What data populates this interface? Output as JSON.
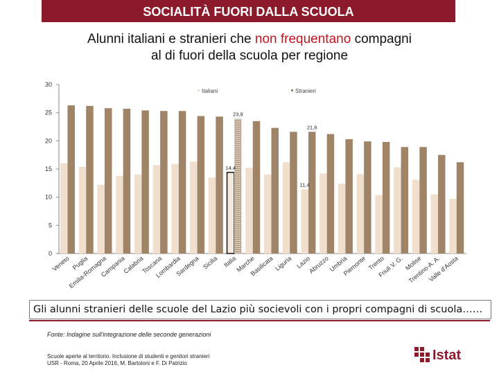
{
  "header": {
    "banner": "SOCIALITÀ FUORI DALLA SCUOLA"
  },
  "title": {
    "part1": "Alunni italiani e stranieri che ",
    "highlight": "non frequentano",
    "part2": " compagni",
    "line2": "al di fuori della scuola per regione"
  },
  "chart_data": {
    "type": "bar",
    "ylim": [
      0,
      30
    ],
    "yticks": [
      0,
      5,
      10,
      15,
      20,
      25,
      30
    ],
    "legend": [
      "Italiani",
      "Stranieri"
    ],
    "categories": [
      "Veneto",
      "Puglia",
      "Emilia-Romagna",
      "Campania",
      "Calabria",
      "Toscana",
      "Lombardia",
      "Sardegna",
      "Sicilia",
      "Italia",
      "Marche",
      "Basilicata",
      "Liguria",
      "Lazio",
      "Abruzzo",
      "Umbria",
      "Piemonte",
      "Trento",
      "Friuli V. G.",
      "Molise",
      "Trentino-A. A.",
      "Valle d'Aosta"
    ],
    "series": [
      {
        "name": "Italiani",
        "values": [
          16.0,
          15.4,
          12.2,
          13.8,
          14.0,
          15.7,
          15.9,
          16.3,
          13.5,
          14.4,
          15.2,
          14.0,
          16.2,
          11.4,
          14.2,
          12.4,
          14.1,
          10.4,
          15.3,
          13.1,
          10.5,
          9.7
        ]
      },
      {
        "name": "Stranieri",
        "values": [
          26.3,
          26.2,
          25.8,
          25.7,
          25.4,
          25.3,
          25.3,
          24.4,
          24.3,
          23.9,
          23.5,
          22.3,
          21.6,
          21.6,
          21.2,
          20.3,
          19.9,
          19.8,
          18.9,
          18.9,
          17.5,
          16.2
        ]
      }
    ],
    "data_labels": [
      {
        "series": "Italiani",
        "category": "Italia",
        "text": "14,4"
      },
      {
        "series": "Stranieri",
        "category": "Italia",
        "text": "23,9"
      },
      {
        "series": "Italiani",
        "category": "Lazio",
        "text": "11,4"
      },
      {
        "series": "Stranieri",
        "category": "Lazio",
        "text": "21,6"
      }
    ]
  },
  "note": "Gli alunni stranieri delle scuole del Lazio più socievoli con i propri compagni di scuola……",
  "source": "Fonte: Indagine sull'integrazione delle seconde generazioni",
  "credits": {
    "line1": "Scuole aperte al territorio. Inclusione di studenti e genitori stranieri",
    "line2": "USR - Roma, 20 Aprile 2016, M. Bartoloni e F. Di Patrizio"
  },
  "logo": {
    "text": "Istat"
  },
  "colors": {
    "banner": "#8b1a2b",
    "italiani": "#f0dfcd",
    "stranieri": "#a08468",
    "highlight": "#c0151f"
  }
}
